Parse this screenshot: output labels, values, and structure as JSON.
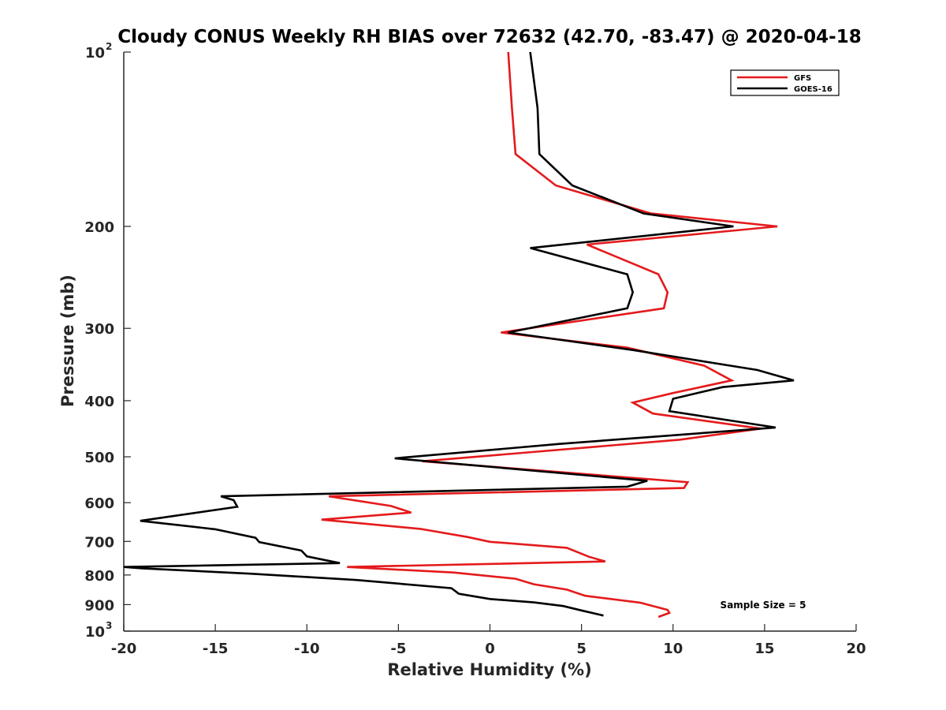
{
  "chart_data": {
    "type": "line",
    "title": "Cloudy CONUS Weekly RH BIAS over 72632 (42.70, -83.47) @ 2020-04-18",
    "xlabel": "Relative Humidity (%)",
    "ylabel": "Pressure (mb)",
    "xlim": [
      -20,
      20
    ],
    "ylim": [
      100,
      1000
    ],
    "y_scale": "log",
    "y_reversed": true,
    "grid": false,
    "legend_position": "top-right",
    "x_ticks": [
      "-20",
      "-15",
      "-10",
      "-5",
      "0",
      "5",
      "10",
      "15",
      "20"
    ],
    "y_ticks": [
      {
        "value": 100,
        "base": "10",
        "exp": "2"
      },
      {
        "value": 200,
        "label": "200"
      },
      {
        "value": 300,
        "label": "300"
      },
      {
        "value": 400,
        "label": "400"
      },
      {
        "value": 500,
        "label": "500"
      },
      {
        "value": 600,
        "label": "600"
      },
      {
        "value": 700,
        "label": "700"
      },
      {
        "value": 800,
        "label": "800"
      },
      {
        "value": 900,
        "label": "900"
      },
      {
        "value": 1000,
        "base": "10",
        "exp": "3"
      }
    ],
    "annotation": "Sample Size = 5",
    "series": [
      {
        "name": "GFS",
        "color": "#e41a1c",
        "points": [
          [
            1.0,
            100
          ],
          [
            1.2,
            125
          ],
          [
            1.4,
            150
          ],
          [
            3.6,
            170
          ],
          [
            8.8,
            190
          ],
          [
            15.7,
            200
          ],
          [
            5.3,
            215
          ],
          [
            9.2,
            242
          ],
          [
            9.7,
            260
          ],
          [
            9.5,
            277
          ],
          [
            0.6,
            305
          ],
          [
            7.5,
            324
          ],
          [
            11.7,
            348
          ],
          [
            13.2,
            369
          ],
          [
            10.0,
            388
          ],
          [
            7.8,
            403
          ],
          [
            8.9,
            421
          ],
          [
            14.8,
            447
          ],
          [
            10.4,
            467
          ],
          [
            -3.7,
            509
          ],
          [
            10.8,
            553
          ],
          [
            10.6,
            566
          ],
          [
            -8.8,
            585
          ],
          [
            -5.4,
            608
          ],
          [
            -4.3,
            624
          ],
          [
            -9.2,
            642
          ],
          [
            -3.8,
            666
          ],
          [
            -1.2,
            688
          ],
          [
            0.0,
            701
          ],
          [
            4.2,
            718
          ],
          [
            5.4,
            744
          ],
          [
            6.3,
            758
          ],
          [
            -7.8,
            775
          ],
          [
            -2.0,
            792
          ],
          [
            1.4,
            812
          ],
          [
            2.4,
            830
          ],
          [
            4.2,
            848
          ],
          [
            5.2,
            869
          ],
          [
            8.2,
            893
          ],
          [
            9.7,
            919
          ],
          [
            9.8,
            930
          ],
          [
            9.2,
            945
          ]
        ]
      },
      {
        "name": "GOES-16",
        "color": "#000000",
        "points": [
          [
            2.2,
            100
          ],
          [
            2.6,
            125
          ],
          [
            2.7,
            150
          ],
          [
            4.5,
            170
          ],
          [
            8.4,
            190
          ],
          [
            13.3,
            200
          ],
          [
            2.2,
            218
          ],
          [
            7.5,
            242
          ],
          [
            7.8,
            260
          ],
          [
            7.5,
            277
          ],
          [
            1.0,
            305
          ],
          [
            7.8,
            327
          ],
          [
            14.6,
            354
          ],
          [
            16.6,
            369
          ],
          [
            12.7,
            379
          ],
          [
            10.0,
            397
          ],
          [
            9.8,
            417
          ],
          [
            15.6,
            445
          ],
          [
            3.8,
            475
          ],
          [
            -5.2,
            503
          ],
          [
            8.6,
            550
          ],
          [
            7.5,
            563
          ],
          [
            -14.7,
            585
          ],
          [
            -14.0,
            594
          ],
          [
            -13.8,
            610
          ],
          [
            -19.1,
            645
          ],
          [
            -15.0,
            667
          ],
          [
            -12.8,
            690
          ],
          [
            -12.6,
            702
          ],
          [
            -10.3,
            726
          ],
          [
            -10.0,
            743
          ],
          [
            -8.2,
            763
          ],
          [
            -20.0,
            775
          ],
          [
            -19.0,
            779
          ],
          [
            -13.0,
            796
          ],
          [
            -7.3,
            816
          ],
          [
            -2.1,
            843
          ],
          [
            -1.7,
            862
          ],
          [
            0.0,
            880
          ],
          [
            2.4,
            892
          ],
          [
            4.0,
            905
          ],
          [
            5.0,
            921
          ],
          [
            6.2,
            940
          ]
        ]
      }
    ]
  }
}
